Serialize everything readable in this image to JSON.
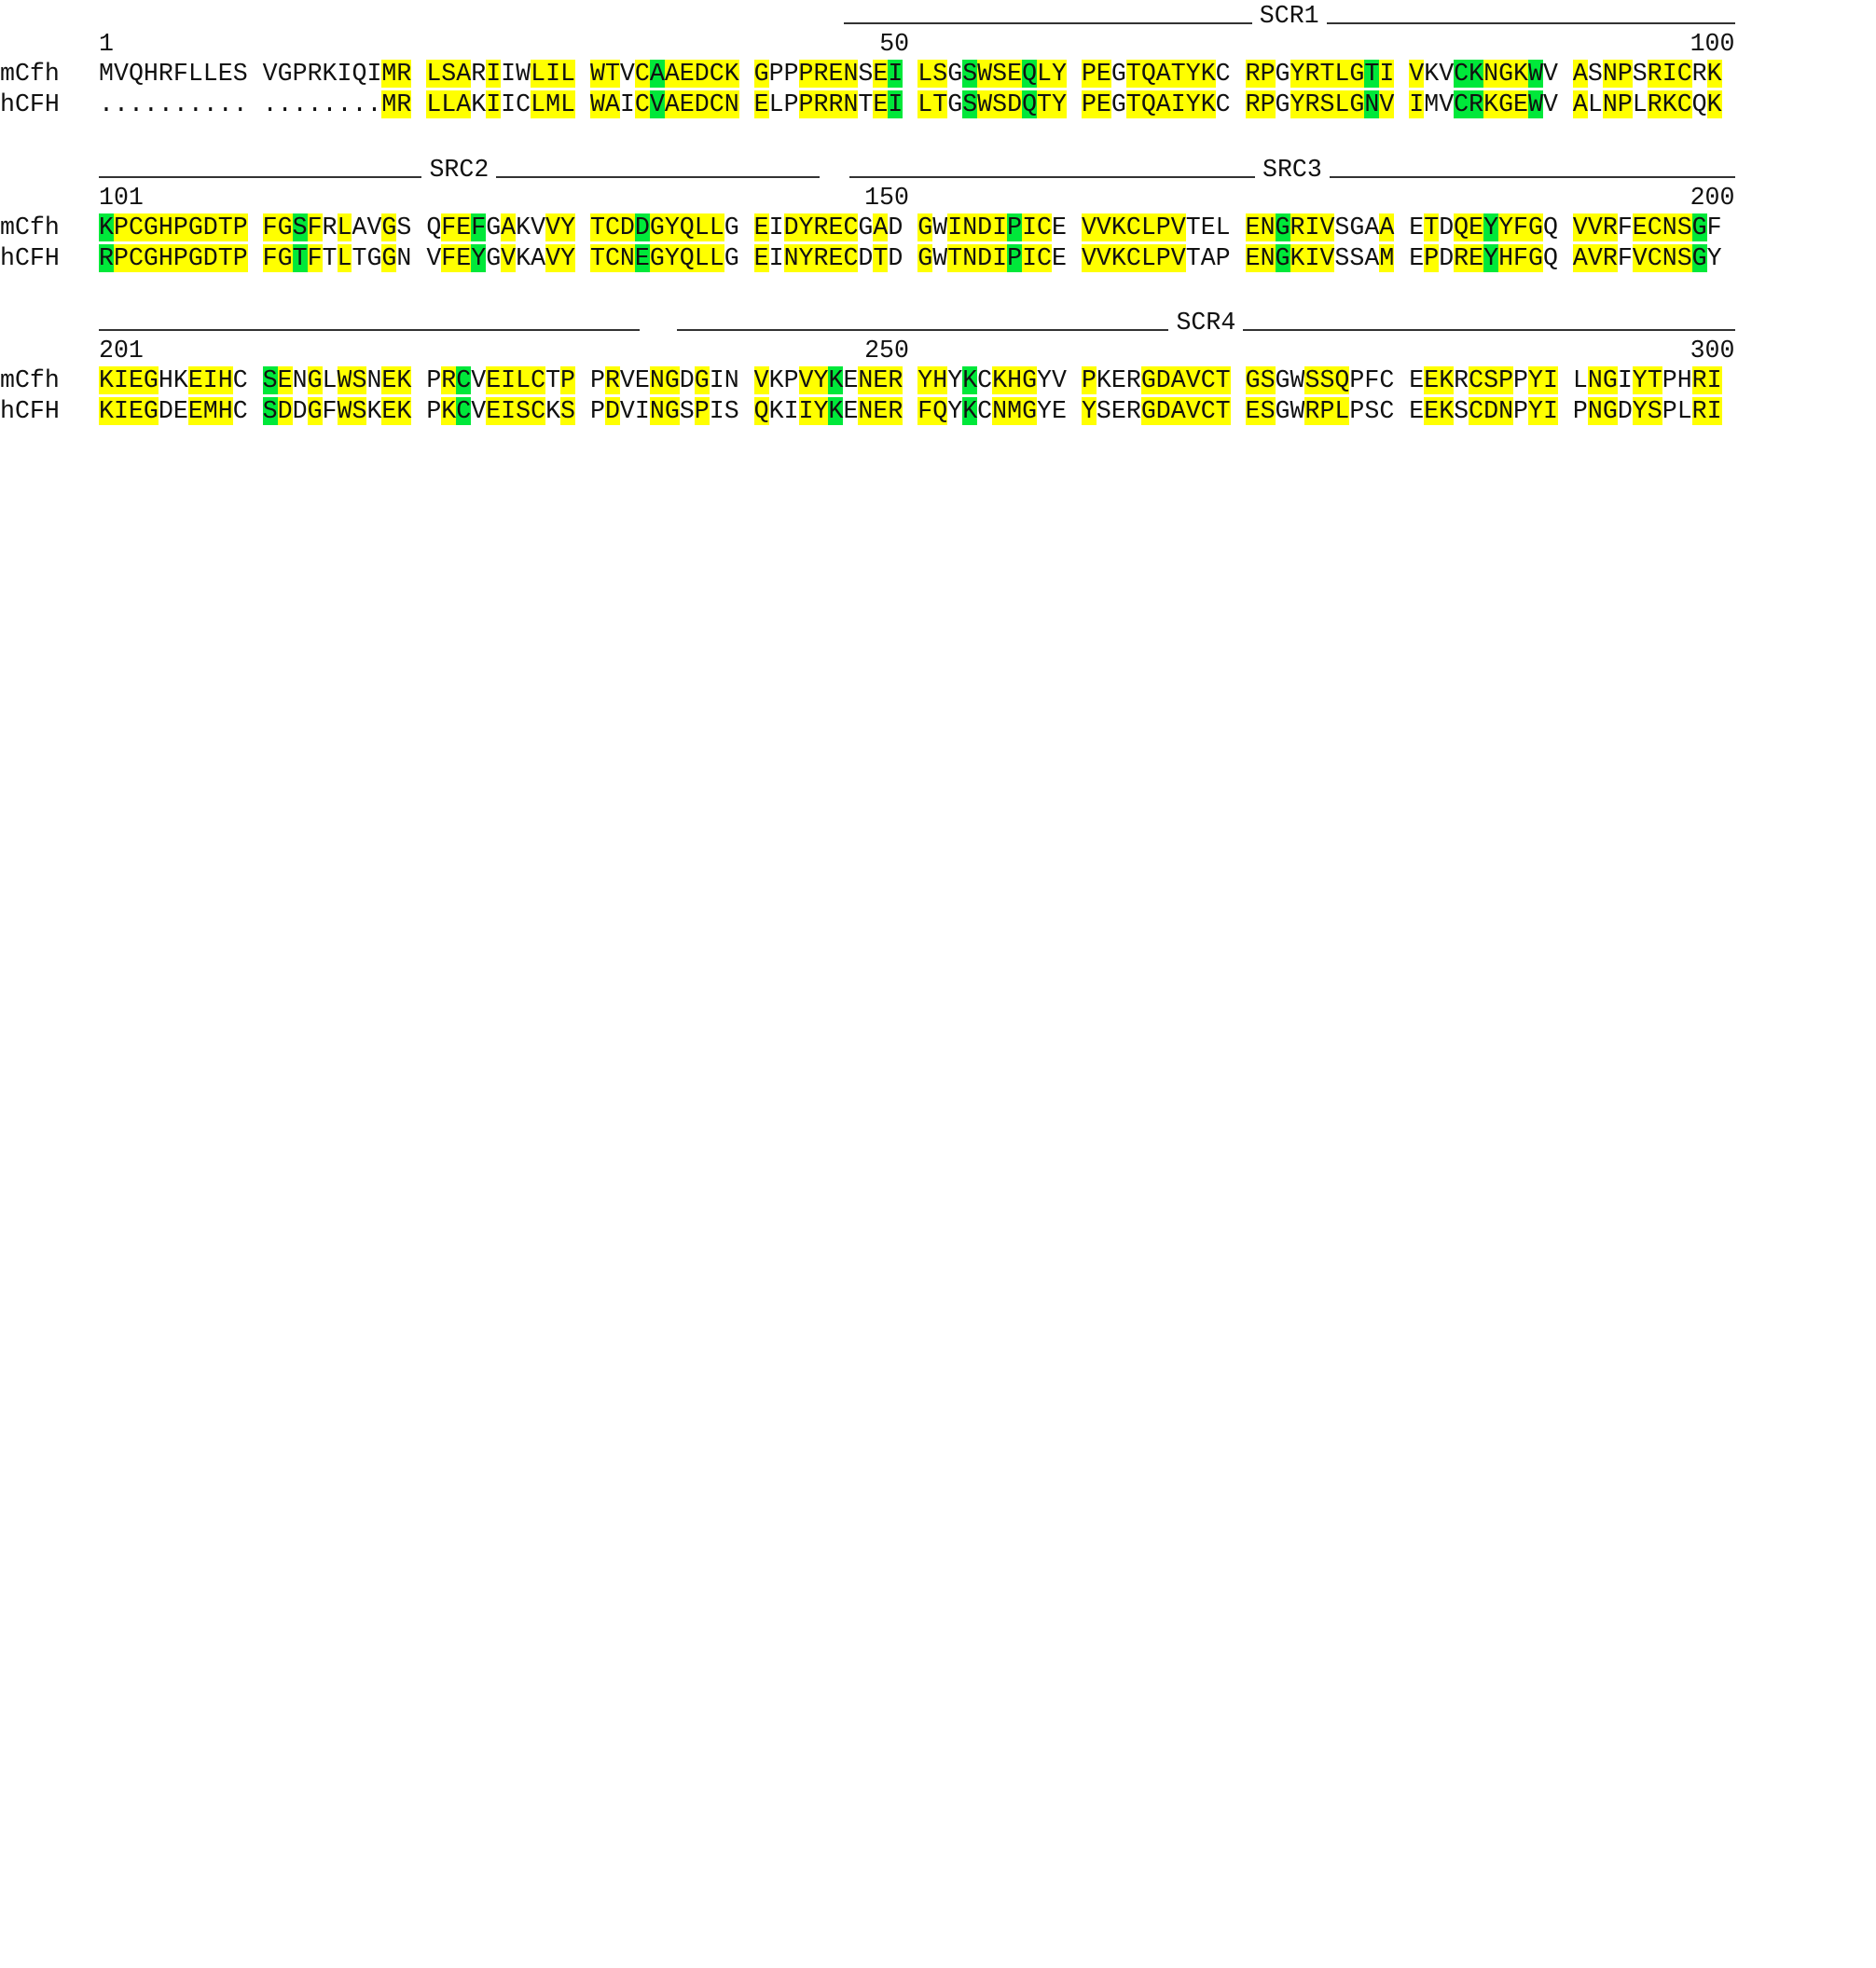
{
  "colors": {
    "identical": "#ffff00",
    "key_substitution": "#00e83a",
    "text": "#111111"
  },
  "row_labels": [
    "mCfh",
    "hCFH"
  ],
  "blocks": [
    {
      "numbers": [
        {
          "text": "1",
          "col": 0
        },
        {
          "text": "50",
          "col": 49
        },
        {
          "text": "100",
          "col": 99
        }
      ],
      "domains": [
        {
          "start": 45.6,
          "end": 100,
          "label": "SCR1"
        }
      ],
      "mCfh": "MVQHRFLLES VGPRKIQIMR LSARIIWLIL WTVCAAEDCK GPPPRENSEI LSGSWSEQLY PEGTQATYKC RPGYRTLGTI VKVCKNGKWV ASNPSRICRK",
      "hCFH": ".......... ........MR LLAKIICLML WAICVAEDCN ELPPRRNTEI LTGSWSDQTY PEGTQAIYKC RPGYRSLGNV IMVCRKGEWV ALNPLRKCQK",
      "hl": "                   yy yyy y  yyy yy ygyyyyyyy  yyyy yg yy gyyygyy yy yyyyyy yyy yyyyygyyy  ggyyyg yy yy yyy yy  yy g",
      "pad": 19
    },
    {
      "numbers": [
        {
          "text": "101",
          "col": 0
        },
        {
          "text": "150",
          "col": 49
        },
        {
          "text": "200",
          "col": 99
        }
      ],
      "domains": [
        {
          "start": 0,
          "end": 44,
          "label": "SRC2"
        },
        {
          "start": 46,
          "end": 100,
          "label": "SRC3"
        }
      ],
      "mCfh": "KPCGHPGDTP FGSFRLAVGS QFEFGAKVVY TCDDGYQLLG EIDYRECGAD GWINDIPICE VVKCLPVTEL ENGRIVSGAA ETDQEYYFGQ VVRFECNSGF",
      "hCFH": "RPCGHPGDTP FGTFTLTGGN VFEYGVKAVY TCNEGYQLLG EINYRECDTD GWTNDIPICE VVKCLPVTAP ENGKIVSSAM EPDREYHFGQ AVRFVCNSGY",
      "hl": "gyyyyyyyyy yygy y  y   yyg y  yy yyygyyyyy yy yyyyy y yy yyyygyy yyyyyyyy   yyygyyy   y  y yygyyy  yyy yyyyg",
      "pad": 0
    },
    {
      "numbers": [
        {
          "text": "201",
          "col": 0
        },
        {
          "text": "250",
          "col": 49
        },
        {
          "text": "300",
          "col": 99
        }
      ],
      "domains": [
        {
          "start": 0,
          "end": 33,
          "label": ""
        },
        {
          "start": 35.5,
          "end": 100,
          "label": "SCR4"
        }
      ],
      "mCfh": "KIEGHKEIHC SENGLWSNEK PRCVEILCTP PRVENGDGIN VKPVYKENER YHYKCKHGYV PKERGDAVCT GSGWSSQPFC EEKRCSPPYI LNGIYTPHRI",
      "hCFH": "KIEGDEEMHC SDDGFWSKEK PKCVEISCKS PDVINGSPIS QKIIYKENER FQYKCNMGYE YSERGDAVCT ESGWRPLPSC EEKSCDNPYI PNGDYSPLRI",
      "hl": "yyyy  yyy ygy y yy yyy yg yyyy y  y  yy y   y  yyg yyyyyy g yyy  yy   yyyyyyyyy  yyy   y yy yyy yy  yy yy  yyy  ygy yy",
      "pad": 0
    }
  ],
  "title": ""
}
